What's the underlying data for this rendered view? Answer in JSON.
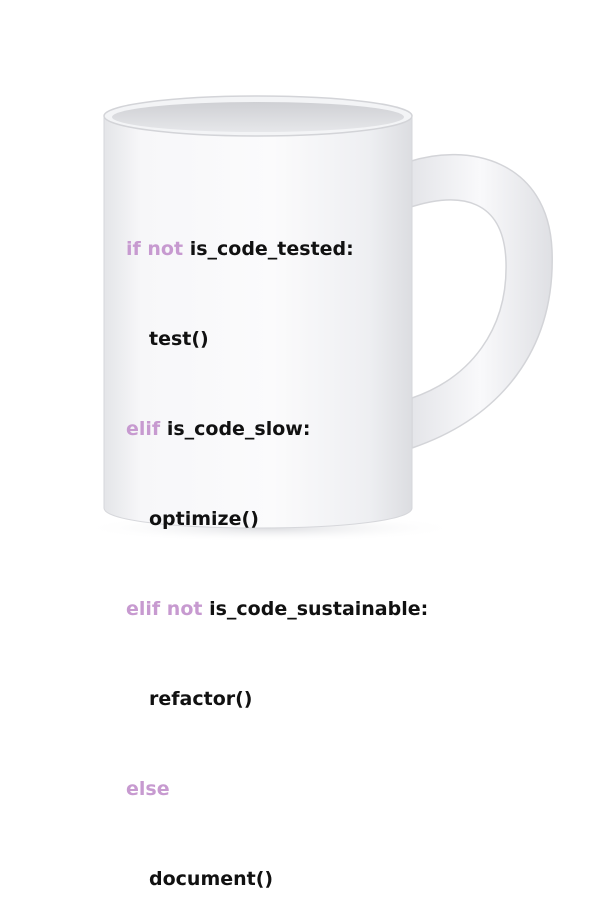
{
  "mug": {
    "body_color": "#f2f3f5",
    "rim_color": "#d9dadd",
    "keyword_color": "#c79ad0",
    "text_color": "#111111"
  },
  "code": {
    "lines": [
      {
        "indent": false,
        "keyword": "if not",
        "rest": "is_code_tested:"
      },
      {
        "indent": true,
        "keyword": "",
        "rest": "test()"
      },
      {
        "indent": false,
        "keyword": "elif",
        "rest": "is_code_slow:"
      },
      {
        "indent": true,
        "keyword": "",
        "rest": "optimize()"
      },
      {
        "indent": false,
        "keyword": "elif not",
        "rest": "is_code_sustainable:"
      },
      {
        "indent": true,
        "keyword": "",
        "rest": "refactor()"
      },
      {
        "indent": false,
        "keyword": "else",
        "rest": ""
      },
      {
        "indent": true,
        "keyword": "",
        "rest": "document()"
      }
    ]
  }
}
